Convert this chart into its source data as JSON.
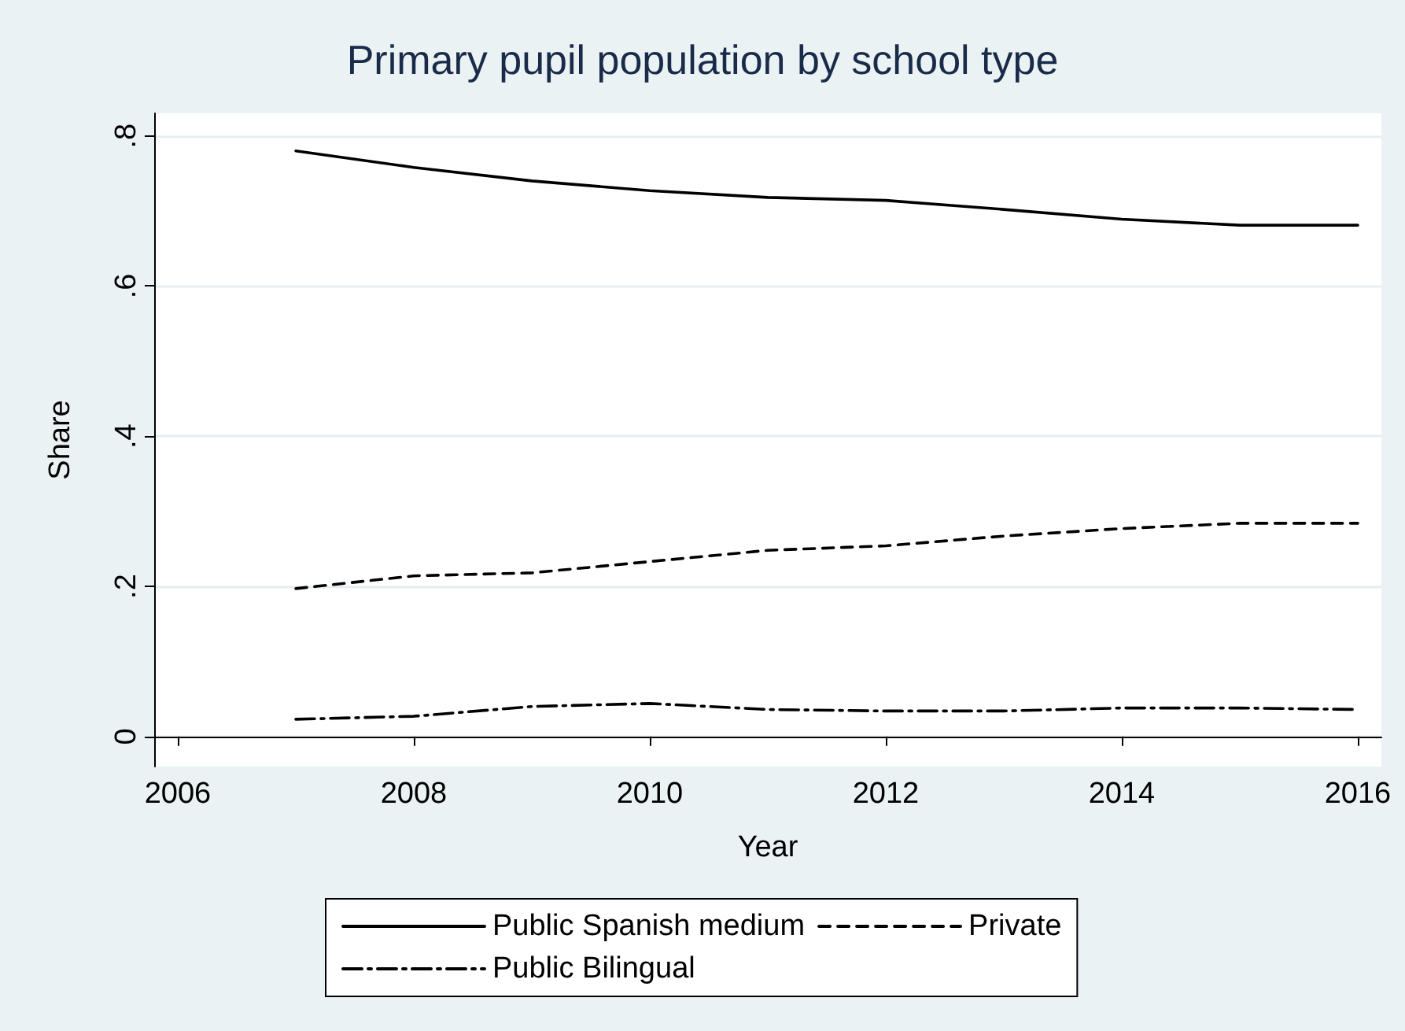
{
  "chart_data": {
    "type": "line",
    "title": "Primary pupil population by school type",
    "xlabel": "Year",
    "ylabel": "Share",
    "x": [
      2007,
      2008,
      2009,
      2010,
      2011,
      2012,
      2013,
      2014,
      2015,
      2016
    ],
    "series": [
      {
        "name": "Public Spanish medium",
        "color": "#000000",
        "line_style": "solid",
        "values": [
          0.78,
          0.758,
          0.74,
          0.727,
          0.718,
          0.714,
          0.702,
          0.689,
          0.681,
          0.681
        ]
      },
      {
        "name": "Private",
        "color": "#000000",
        "line_style": "dashed",
        "values": [
          0.197,
          0.214,
          0.218,
          0.233,
          0.248,
          0.254,
          0.267,
          0.277,
          0.284,
          0.284
        ]
      },
      {
        "name": "Public Bilingual",
        "color": "#000000",
        "line_style": "dashdot",
        "values": [
          0.023,
          0.027,
          0.04,
          0.044,
          0.036,
          0.034,
          0.034,
          0.038,
          0.038,
          0.036
        ]
      }
    ],
    "xlim": [
      2005.8,
      2016.2
    ],
    "xticks": [
      2006,
      2008,
      2010,
      2012,
      2014,
      2016
    ],
    "ylim": [
      -0.04,
      0.83
    ],
    "yticks": [
      {
        "value": 0,
        "label": "0"
      },
      {
        "value": 0.2,
        "label": ".2"
      },
      {
        "value": 0.4,
        "label": ".4"
      },
      {
        "value": 0.6,
        "label": ".6"
      },
      {
        "value": 0.8,
        "label": ".8"
      }
    ],
    "grid": "y",
    "legend": "bottom",
    "marker": "none"
  }
}
